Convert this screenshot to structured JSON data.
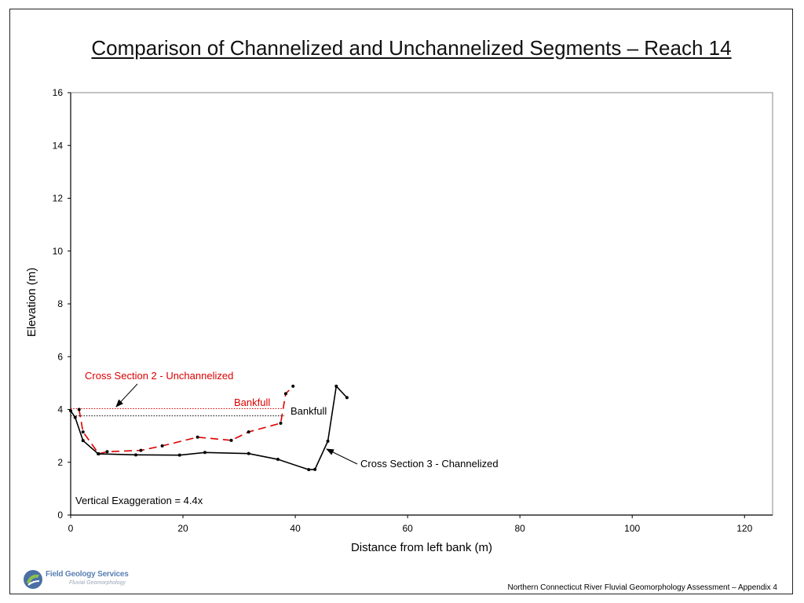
{
  "page": {
    "title": "Comparison of Channelized and Unchannelized Segments – Reach 14",
    "footer": "Northern Connecticut River Fluvial Geomorphology Assessment – Appendix 4",
    "logo": {
      "name": "Field Geology Services",
      "subtitle": "Fluvial Geomorphology"
    }
  },
  "colors": {
    "unchannelized": "#dd0000",
    "channelized": "#000000",
    "frame": "#222222"
  },
  "chart_data": {
    "type": "line",
    "title": "Comparison of Channelized and Unchannelized Segments – Reach 14",
    "xlabel": "Distance from left bank (m)",
    "ylabel": "Elevation (m)",
    "xlim": [
      0,
      125
    ],
    "ylim": [
      0,
      16
    ],
    "x_ticks": [
      0,
      20,
      40,
      60,
      80,
      100,
      120
    ],
    "y_ticks": [
      0,
      2,
      4,
      6,
      8,
      10,
      12,
      14,
      16
    ],
    "x_tick_labels": [
      "0",
      "20",
      "40",
      "60",
      "80",
      "100",
      "120"
    ],
    "y_tick_labels": [
      "0",
      "2",
      "4",
      "6",
      "8",
      "10",
      "12",
      "14",
      "16"
    ],
    "grid": false,
    "series": [
      {
        "name": "Cross Section 2 - Unchannelized",
        "style": "dashed",
        "x": [
          1.5,
          2.2,
          5.0,
          6.5,
          12.5,
          16.3,
          22.6,
          28.6,
          31.7,
          37.4,
          38.3,
          39.6
        ],
        "y": [
          4.0,
          3.15,
          2.32,
          2.4,
          2.45,
          2.62,
          2.95,
          2.83,
          3.15,
          3.48,
          4.6,
          4.88
        ]
      },
      {
        "name": "Cross Section 3 - Channelized",
        "style": "solid",
        "x": [
          0.0,
          0.8,
          2.2,
          4.9,
          11.6,
          19.4,
          23.9,
          31.7,
          36.9,
          42.4,
          43.5,
          45.8,
          47.3,
          49.2
        ],
        "y": [
          3.95,
          3.7,
          2.82,
          2.32,
          2.28,
          2.27,
          2.37,
          2.33,
          2.11,
          1.72,
          1.73,
          2.8,
          4.88,
          4.45
        ]
      }
    ],
    "bankfull": [
      {
        "label": "Bankfull",
        "series": "Cross Section 2 - Unchannelized",
        "y": 4.03,
        "x_range": [
          0,
          37.7
        ]
      },
      {
        "label": "Bankfull",
        "series": "Cross Section 3 - Channelized",
        "y": 3.76,
        "x_range": [
          0,
          38.0
        ]
      }
    ],
    "annotations": {
      "unchannelized_label": "Cross Section 2 - Unchannelized",
      "channelized_label": "Cross Section 3 - Channelized",
      "bankfull_red": "Bankfull",
      "bankfull_black": "Bankfull",
      "exaggeration": "Vertical Exaggeration = 4.4x"
    }
  }
}
